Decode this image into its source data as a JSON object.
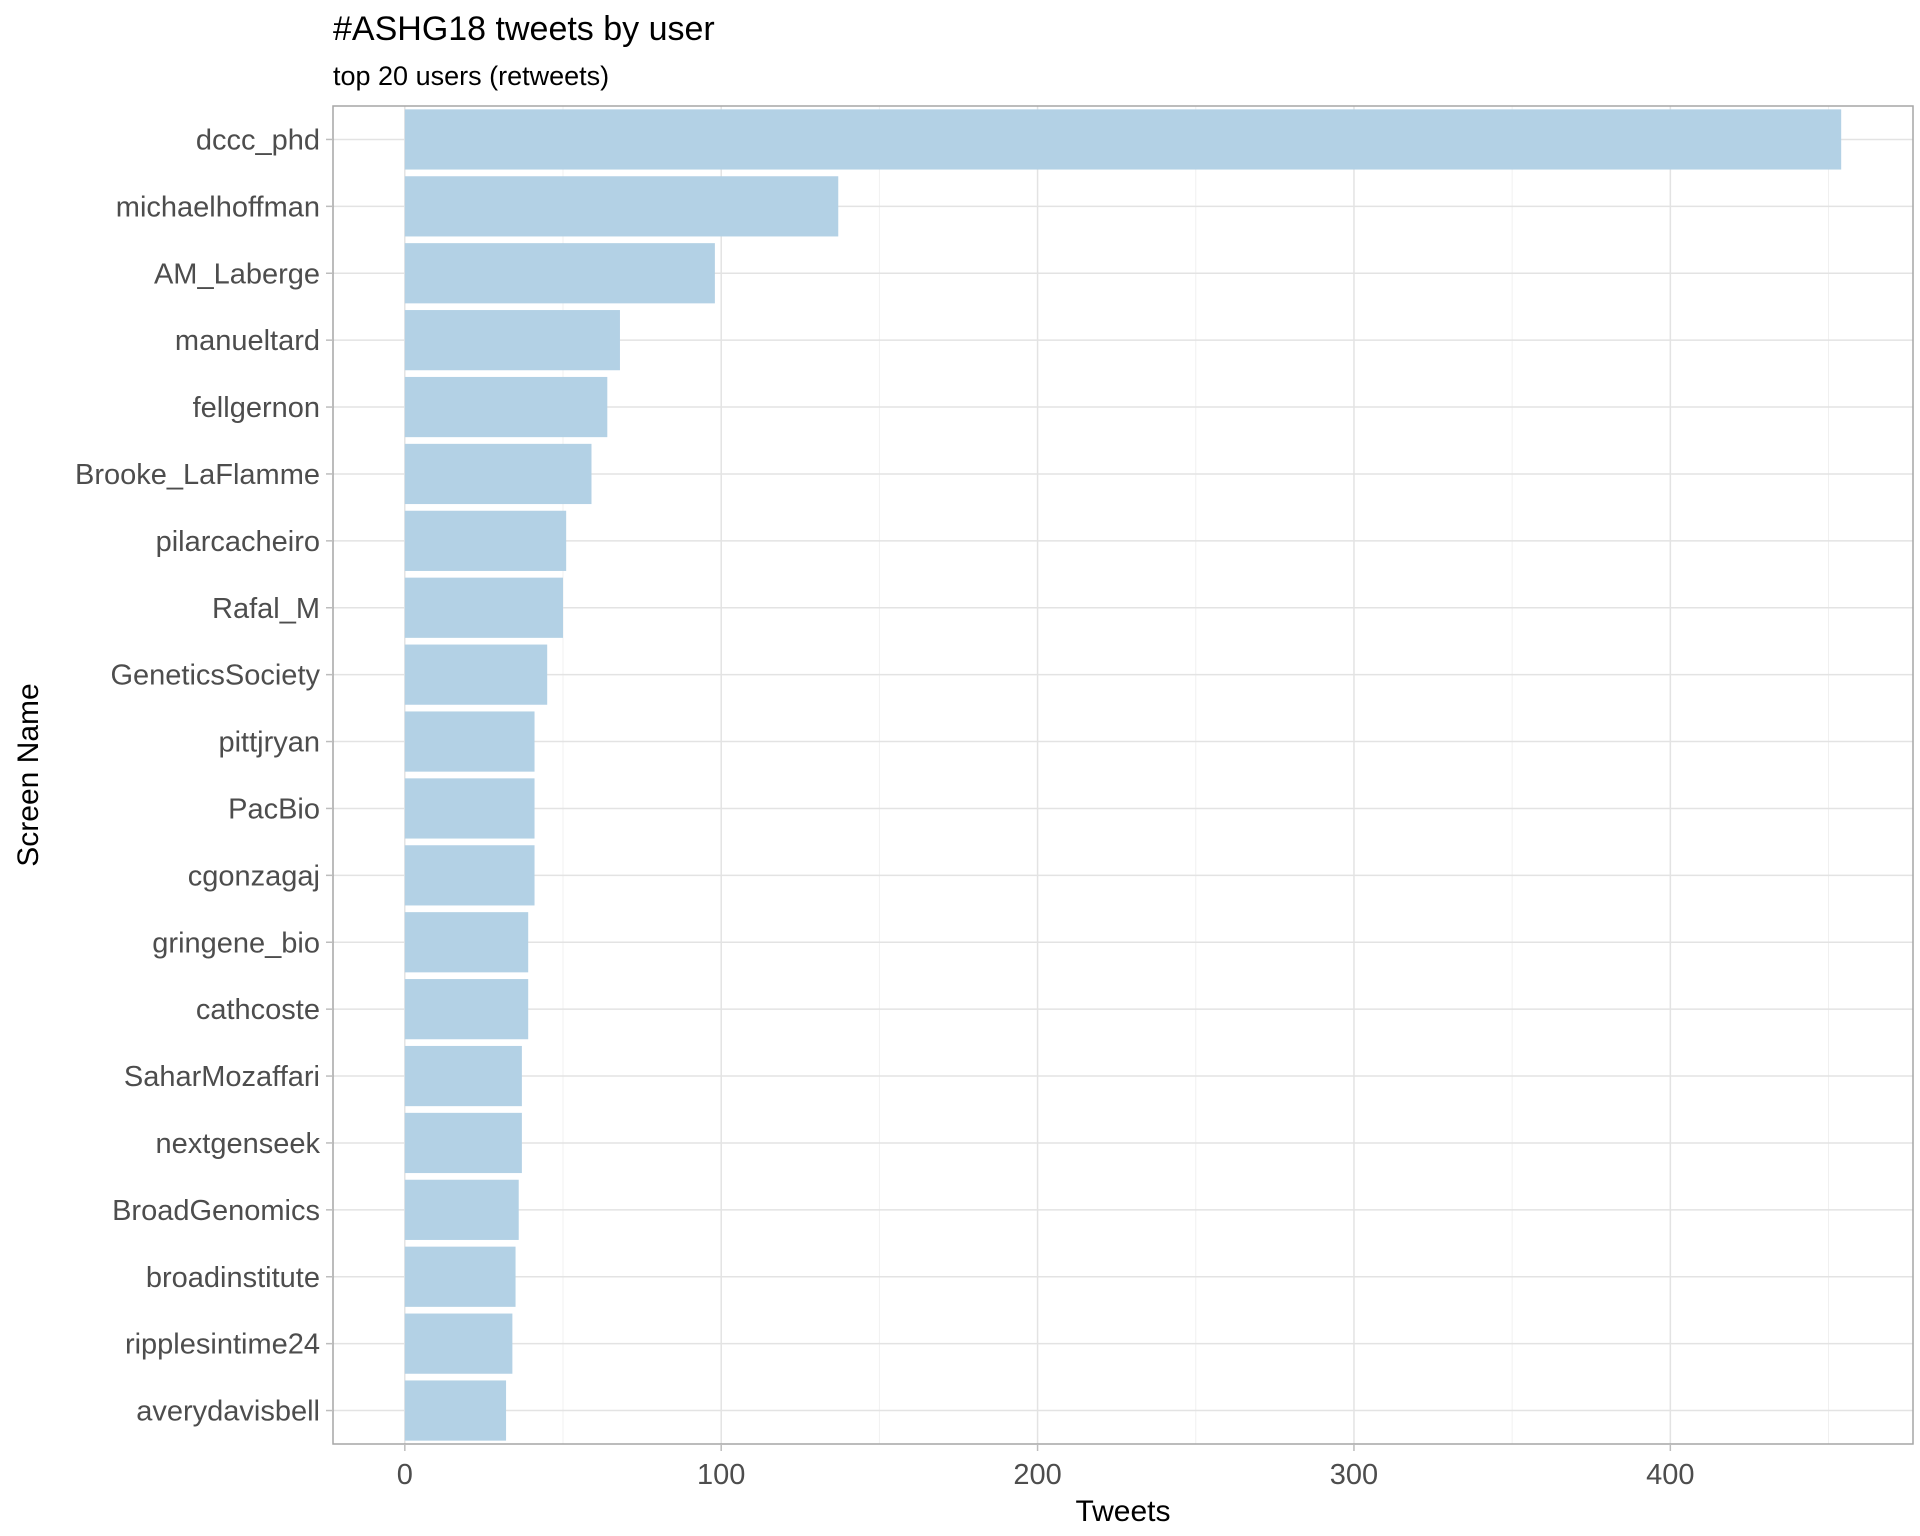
{
  "chart_data": {
    "type": "bar",
    "orientation": "horizontal",
    "title": "#ASHG18 tweets by user",
    "subtitle": "top 20 users (retweets)",
    "xlabel": "Tweets",
    "ylabel": "Screen Name",
    "categories": [
      "dccc_phd",
      "michaelhoffman",
      "AM_Laberge",
      "manueltard",
      "fellgernon",
      "Brooke_LaFlamme",
      "pilarcacheiro",
      "Rafal_M",
      "GeneticsSociety",
      "pittjryan",
      "PacBio",
      "cgonzagaj",
      "gringene_bio",
      "cathcoste",
      "SaharMozaffari",
      "nextgenseek",
      "BroadGenomics",
      "broadinstitute",
      "ripplesintime24",
      "averydavisbell"
    ],
    "values": [
      454,
      137,
      98,
      68,
      64,
      59,
      51,
      50,
      45,
      41,
      41,
      41,
      39,
      39,
      37,
      37,
      36,
      35,
      34,
      32
    ],
    "xlim": [
      -22.7,
      476.7
    ],
    "xticks": [
      0,
      100,
      200,
      300,
      400
    ],
    "grid": true,
    "legend": "none",
    "bar_color": "#b3d1e5"
  }
}
